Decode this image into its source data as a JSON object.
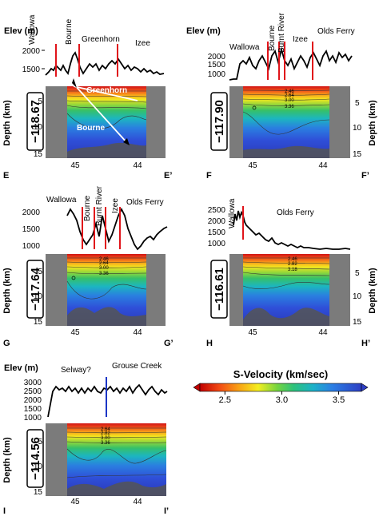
{
  "panels": [
    {
      "id": "E",
      "longitude": "−118.67",
      "elev_label": "Elev (m)",
      "elev_ticks": [
        "2000",
        "1500"
      ],
      "depth_label": "Depth (km)",
      "depth_side": "left",
      "depth_ticks": [
        "5",
        "10",
        "15"
      ],
      "lat_ticks": [
        "45",
        "44"
      ],
      "start_label": "E",
      "end_label": "E’",
      "terranes": [
        "Wallowa",
        "Bourne",
        "Greenhorn",
        "Izee"
      ],
      "annotations": [
        "Greenhorn",
        "Bourne"
      ]
    },
    {
      "id": "F",
      "longitude": "−117.90",
      "elev_label": "Elev (m)",
      "elev_ticks": [
        "2000",
        "1500",
        "1000"
      ],
      "depth_label": "Depth (km)",
      "depth_side": "right",
      "depth_ticks": [
        "5",
        "10",
        "15"
      ],
      "lat_ticks": [
        "45",
        "44"
      ],
      "start_label": "F",
      "end_label": "F’",
      "terranes": [
        "Wallowa",
        "Bourne",
        "Burnt River",
        "Izee",
        "Olds Ferry"
      ],
      "contour_labels": [
        "2.46",
        "2.64",
        "2.82",
        "3.00",
        "3.18",
        "3.36",
        "3.54"
      ]
    },
    {
      "id": "G",
      "longitude": "−117.64",
      "elev_label": "",
      "elev_ticks": [
        "2000",
        "1500",
        "1000"
      ],
      "depth_label": "Depth (km)",
      "depth_side": "left",
      "depth_ticks": [
        "5",
        "10",
        "15"
      ],
      "lat_ticks": [
        "45",
        "44"
      ],
      "start_label": "G",
      "end_label": "G’",
      "terranes": [
        "Wallowa",
        "Bourne",
        "Burnt River",
        "Izee",
        "Olds Ferry"
      ],
      "contour_labels": [
        "2.46",
        "2.64",
        "2.82",
        "3.00",
        "3.18",
        "3.36"
      ]
    },
    {
      "id": "H",
      "longitude": "−116.61",
      "elev_label": "",
      "elev_ticks": [
        "2500",
        "2000",
        "1500",
        "1000"
      ],
      "depth_label": "Depth (km)",
      "depth_side": "right",
      "depth_ticks": [
        "5",
        "10",
        "15"
      ],
      "lat_ticks": [
        "45",
        "44"
      ],
      "start_label": "H",
      "end_label": "H’",
      "terranes": [
        "Wallowa",
        "Olds Ferry"
      ],
      "contour_labels": [
        "2.46",
        "2.64",
        "2.82",
        "3.00",
        "3.18",
        "3.36"
      ]
    },
    {
      "id": "I",
      "longitude": "−114.56",
      "elev_label": "Elev (m)",
      "elev_ticks": [
        "3000",
        "2500",
        "2000",
        "1500",
        "1000"
      ],
      "depth_label": "Depth (km)",
      "depth_side": "left",
      "depth_ticks": [
        "5",
        "10",
        "15"
      ],
      "lat_ticks": [
        "45",
        "44"
      ],
      "start_label": "I",
      "end_label": "I’",
      "terranes": [
        "Selway?",
        "Grouse Creek"
      ],
      "contour_labels": [
        "2.64",
        "2.82",
        "3.00",
        "3.18",
        "3.36"
      ]
    }
  ],
  "colorbar": {
    "title": "S-Velocity (km/sec)",
    "ticks": [
      "2.5",
      "3.0",
      "3.5"
    ],
    "min": 2.28,
    "max": 3.7,
    "tick_values": [
      2.5,
      3.0,
      3.5
    ]
  },
  "colors": {
    "terrane_boundary": "#e0141a",
    "selway_boundary": "#1b35c6",
    "no_data": "#7b7b7b",
    "arrow": "#ffffff"
  }
}
